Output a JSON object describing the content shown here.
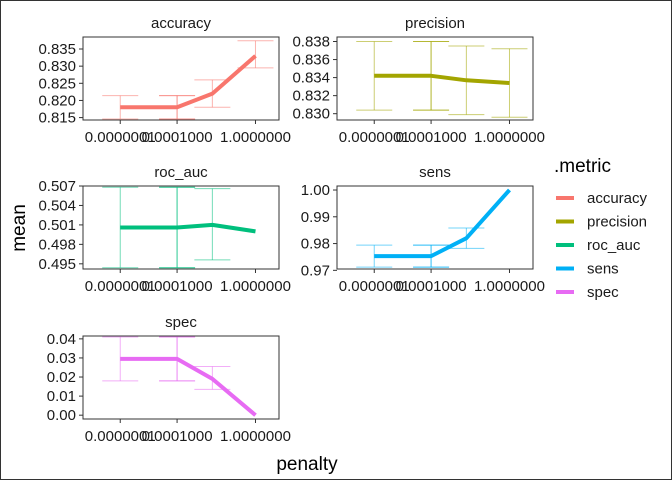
{
  "figure": {
    "xlabel": "penalty",
    "ylabel": "mean",
    "legend": {
      "title": ".metric",
      "position": "right",
      "items": [
        {
          "label": "accuracy",
          "color": "#F8766D"
        },
        {
          "label": "precision",
          "color": "#A3A500"
        },
        {
          "label": "roc_auc",
          "color": "#00BF7D"
        },
        {
          "label": "sens",
          "color": "#00B0F6"
        },
        {
          "label": "spec",
          "color": "#E76BF3"
        }
      ]
    }
  },
  "chart_data": [
    {
      "type": "line",
      "title": "accuracy",
      "color": "#F8766D",
      "x": [
        1e-07,
        0.0001,
        0.001,
        0.01,
        1
      ],
      "xticks": [
        "0.0000001",
        "0.0001000",
        "1.0000000"
      ],
      "ylim": [
        0.8143,
        0.8385
      ],
      "yticks": [
        "0.815",
        "0.820",
        "0.825",
        "0.830",
        "0.835"
      ],
      "series": [
        {
          "values": [
            0.818,
            0.818,
            0.818,
            0.822,
            0.833
          ],
          "lower": [
            0.8146,
            0.8146,
            0.8146,
            0.818,
            0.8295
          ],
          "upper": [
            0.8214,
            0.8214,
            0.8214,
            0.826,
            0.8374
          ]
        }
      ]
    },
    {
      "type": "line",
      "title": "precision",
      "color": "#A3A500",
      "x": [
        1e-07,
        0.0001,
        0.001,
        0.01,
        1
      ],
      "xticks": [
        "0.0000001",
        "0.0001000",
        "1.0000000"
      ],
      "ylim": [
        0.8293,
        0.8385
      ],
      "yticks": [
        "0.830",
        "0.832",
        "0.834",
        "0.836",
        "0.838"
      ],
      "series": [
        {
          "values": [
            0.8342,
            0.8342,
            0.8342,
            0.8337,
            0.8334
          ],
          "lower": [
            0.8304,
            0.8304,
            0.8304,
            0.8299,
            0.8296
          ],
          "upper": [
            0.838,
            0.838,
            0.838,
            0.8375,
            0.8372
          ]
        }
      ]
    },
    {
      "type": "line",
      "title": "roc_auc",
      "color": "#00BF7D",
      "x": [
        1e-07,
        0.0001,
        0.001,
        0.01,
        1
      ],
      "xticks": [
        "0.0000001",
        "0.0001000",
        "1.0000000"
      ],
      "ylim": [
        0.4942,
        0.507
      ],
      "yticks": [
        "0.495",
        "0.498",
        "0.501",
        "0.504",
        "0.507"
      ],
      "series": [
        {
          "values": [
            0.5006,
            0.5006,
            0.5006,
            0.501,
            0.5
          ],
          "lower": [
            0.4944,
            0.4944,
            0.4944,
            0.4956,
            0.5
          ],
          "upper": [
            0.5068,
            0.5068,
            0.5068,
            0.5066,
            0.5
          ]
        }
      ]
    },
    {
      "type": "line",
      "title": "sens",
      "color": "#00B0F6",
      "x": [
        1e-07,
        0.0001,
        0.001,
        0.01,
        1
      ],
      "xticks": [
        "0.0000001",
        "0.0001000",
        "1.0000000"
      ],
      "ylim": [
        0.9705,
        1.0015
      ],
      "yticks": [
        "0.97",
        "0.98",
        "0.99",
        "1.00"
      ],
      "series": [
        {
          "values": [
            0.9753,
            0.9753,
            0.9753,
            0.982,
            1.0
          ],
          "lower": [
            0.9712,
            0.9712,
            0.9712,
            0.9782,
            1.0
          ],
          "upper": [
            0.9794,
            0.9794,
            0.9794,
            0.9858,
            1.0
          ]
        }
      ]
    },
    {
      "type": "line",
      "title": "spec",
      "color": "#E76BF3",
      "x": [
        1e-07,
        0.0001,
        0.001,
        0.01,
        1
      ],
      "xticks": [
        "0.0000001",
        "0.0001000",
        "1.0000000"
      ],
      "ylim": [
        -0.002,
        0.0415
      ],
      "yticks": [
        "0.00",
        "0.01",
        "0.02",
        "0.03",
        "0.04"
      ],
      "series": [
        {
          "values": [
            0.0295,
            0.0295,
            0.0295,
            0.019,
            0.0
          ],
          "lower": [
            0.018,
            0.018,
            0.018,
            0.0135,
            0.0
          ],
          "upper": [
            0.041,
            0.041,
            0.041,
            0.0255,
            0.0
          ]
        }
      ]
    }
  ]
}
